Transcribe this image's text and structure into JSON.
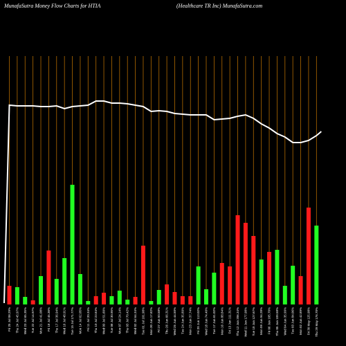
{
  "header": {
    "left": "MunafaSutra  Money Flow  Charts for HTIA",
    "right": "(Healthcare   TR Inc) MunafaSutra.com"
  },
  "chart_data": {
    "type": "bar",
    "title": "",
    "grid": "vertical",
    "colors": {
      "up": "#22ff22",
      "down": "#ff1a1a",
      "grid": "#b36b00",
      "line": "#ffffff"
    },
    "bars": [
      {
        "label": "Fri 25 Jul 08.29%",
        "value": 27,
        "color": "down"
      },
      {
        "label": "Thu 24 Jul 45.97%",
        "value": 25,
        "color": "up"
      },
      {
        "label": "Wed 23 Jul 65.35%",
        "value": 11,
        "color": "up"
      },
      {
        "label": "Tue 22 Jul 14.97%",
        "value": 6,
        "color": "down"
      },
      {
        "label": "Mon 21 Jul 41.08%",
        "value": 41,
        "color": "up"
      },
      {
        "label": "Fri 18 Jul 45.36%",
        "value": 78,
        "color": "down"
      },
      {
        "label": "Thu 17 Jul 36.94%",
        "value": 37,
        "color": "up"
      },
      {
        "label": "Wed 16 Jul 48.91%",
        "value": 67,
        "color": "up"
      },
      {
        "label": "Tue 15 Jul 171.77%",
        "value": 173,
        "color": "up"
      },
      {
        "label": "Mon 14 Jul 62.05%",
        "value": 44,
        "color": "up"
      },
      {
        "label": "Fri 11 Jul 20.34%",
        "value": 5,
        "color": "up"
      },
      {
        "label": "Thu 10 Jul 23.84%",
        "value": 12,
        "color": "down"
      },
      {
        "label": "Wed 09 Jul 51.60%",
        "value": 17,
        "color": "down"
      },
      {
        "label": "Tue 08 Jul 30.95%",
        "value": 12,
        "color": "up"
      },
      {
        "label": "Mon 07 Jul 24.14%",
        "value": 20,
        "color": "up"
      },
      {
        "label": "Thu 03 Jul 70.42%",
        "value": 7,
        "color": "up"
      },
      {
        "label": "Wed 02 Jul 64.34%",
        "value": 11,
        "color": "down"
      },
      {
        "label": "Tue 01 Jul 101.98%",
        "value": 85,
        "color": "down"
      },
      {
        "label": "Mon 30 Jun 17.82%",
        "value": 5,
        "color": "up"
      },
      {
        "label": "Fri 27 Jun 50.58%",
        "value": 21,
        "color": "up"
      },
      {
        "label": "Thu 26 Jun 66.31%",
        "value": 29,
        "color": "down"
      },
      {
        "label": "Wed 25 Jun 44.50%",
        "value": 18,
        "color": "down"
      },
      {
        "label": "Tue 24 Jun 35.89%",
        "value": 12,
        "color": "down"
      },
      {
        "label": "Mon 23 Jun 37.74%",
        "value": 12,
        "color": "down"
      },
      {
        "label": "Fri 20 Jun 113.02%",
        "value": 55,
        "color": "up"
      },
      {
        "label": "Wed 18 Jun 74.40%",
        "value": 22,
        "color": "up"
      },
      {
        "label": "Tue 17 Jun 61.02%",
        "value": 46,
        "color": "up"
      },
      {
        "label": "Mon 16 Jun 88.84%",
        "value": 60,
        "color": "down"
      },
      {
        "label": "Fri 13 Jun 111.31%",
        "value": 55,
        "color": "down"
      },
      {
        "label": "Thu 12 Jun 206.34%",
        "value": 129,
        "color": "down"
      },
      {
        "label": "Wed 11 Jun 177.98%",
        "value": 118,
        "color": "down"
      },
      {
        "label": "Tue 10 Jun 127.67%",
        "value": 99,
        "color": "down"
      },
      {
        "label": "Mon 09 Jun 94.28%",
        "value": 65,
        "color": "up"
      },
      {
        "label": "Fri 06 Jun 105.70%",
        "value": 76,
        "color": "down"
      },
      {
        "label": "Thu 05 Jun 109.58%",
        "value": 79,
        "color": "up"
      },
      {
        "label": "Wed 04 Jun 35.99%",
        "value": 27,
        "color": "up"
      },
      {
        "label": "Tue 03 Jun 84.06%",
        "value": 56,
        "color": "up"
      },
      {
        "label": "Mon 02 Jun 42.89%",
        "value": 41,
        "color": "down"
      },
      {
        "label": "Fri 30 May 125.98%",
        "value": 140,
        "color": "down"
      },
      {
        "label": "Thu 29 May 176.70%",
        "value": 114,
        "color": "up"
      }
    ],
    "line": [
      152,
      153,
      153,
      153,
      154,
      154,
      153,
      157,
      154,
      153,
      152,
      146,
      146,
      149,
      149,
      150,
      152,
      154,
      161,
      160,
      161,
      164,
      165,
      166,
      166,
      166,
      173,
      172,
      171,
      168,
      166,
      171,
      179,
      185,
      193,
      198,
      206,
      206,
      203,
      196
    ]
  }
}
